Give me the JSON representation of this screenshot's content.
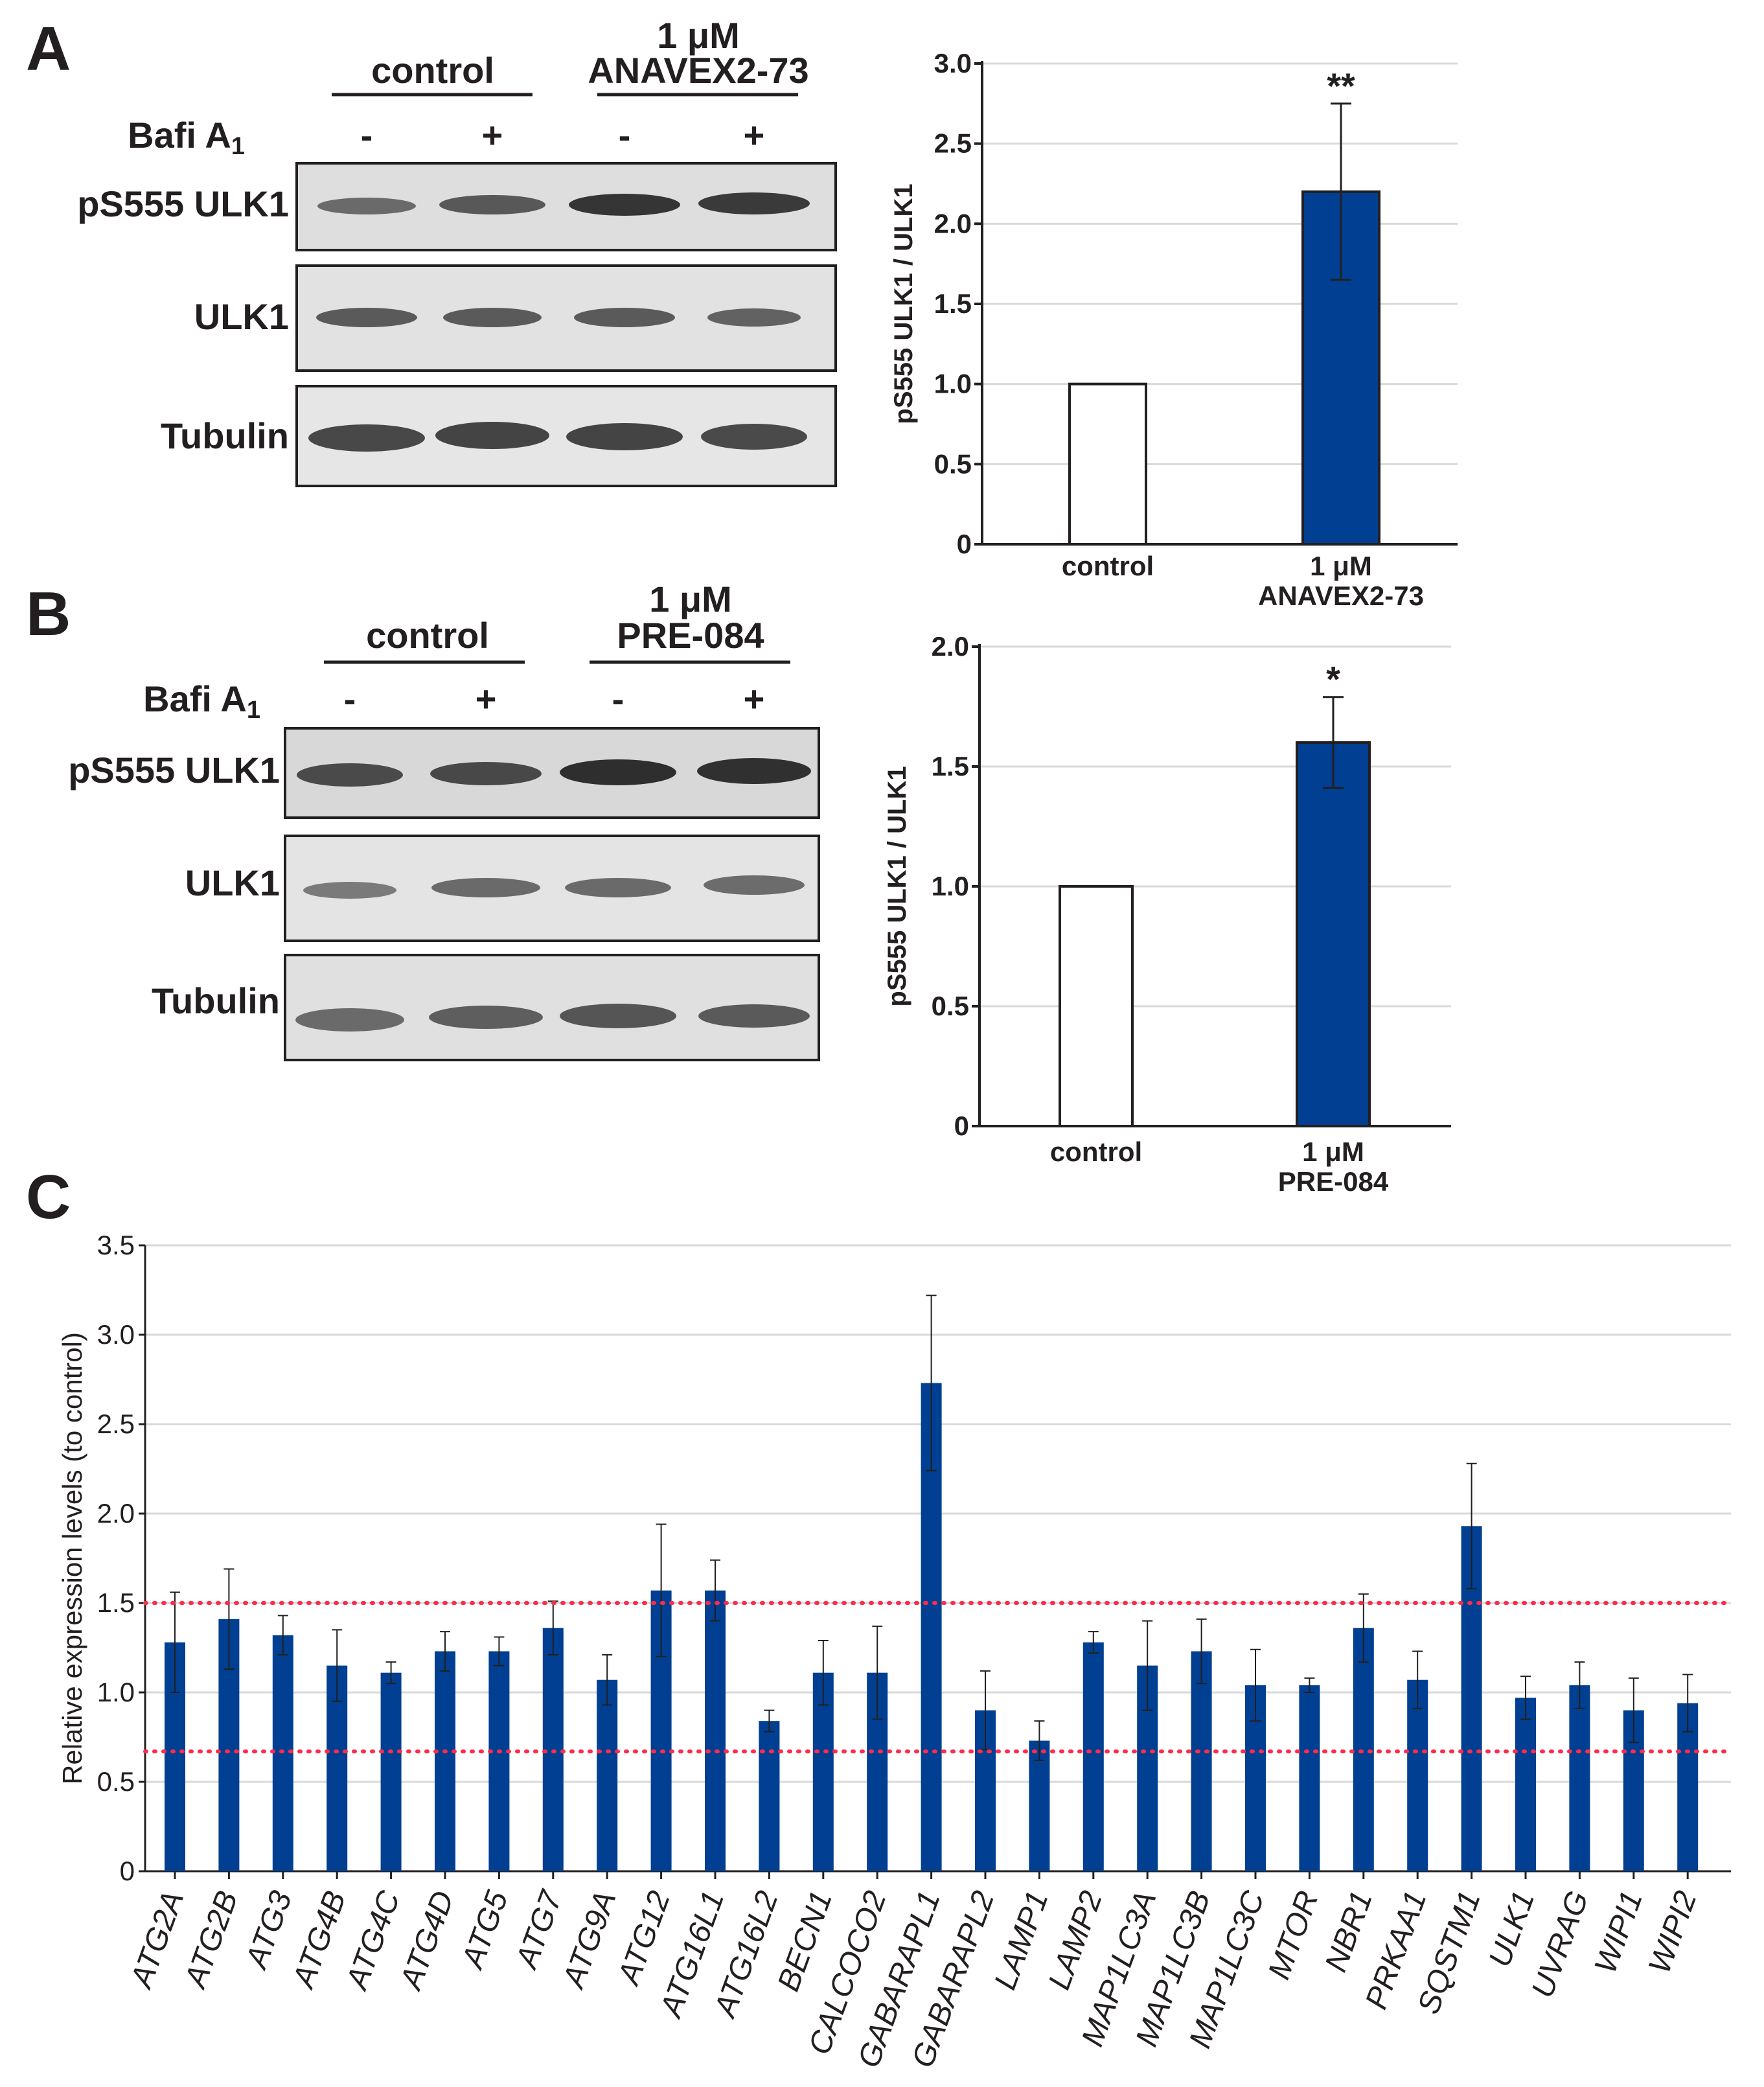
{
  "panels": {
    "a": "A",
    "b": "B",
    "c": "C"
  },
  "blot_a": {
    "group1": "control",
    "group2_line1": "1 μM",
    "group2_line2": "ANAVEX2-73",
    "treatment_label": "Bafi A",
    "treatment_sub": "1",
    "signs": [
      "-",
      "+",
      "-",
      "+"
    ],
    "rows": [
      "pS555 ULK1",
      "ULK1",
      "Tubulin"
    ]
  },
  "blot_b": {
    "group1": "control",
    "group2_line1": "1 μM",
    "group2_line2": "PRE-084",
    "treatment_label": "Bafi A",
    "treatment_sub": "1",
    "signs": [
      "-",
      "+",
      "-",
      "+"
    ],
    "rows": [
      "pS555 ULK1",
      "ULK1",
      "Tubulin"
    ]
  },
  "colors": {
    "bar_fill": "#003f91",
    "threshold_line": "#ff2b4a",
    "grid": "#d9d9d9",
    "blot_bg": "#dcdcdc",
    "band": "#3c3c3c"
  },
  "chart_data": [
    {
      "id": "A",
      "type": "bar",
      "categories": [
        "control",
        "1 μM ANAVEX2-73"
      ],
      "category_lines": [
        [
          "control"
        ],
        [
          "1 μM",
          "ANAVEX2-73"
        ]
      ],
      "values": [
        1.0,
        2.2
      ],
      "errors": [
        0,
        0.55
      ],
      "significance": [
        "",
        "**"
      ],
      "ylabel": "pS555 ULK1 / ULK1",
      "ylim": [
        0,
        3.0
      ],
      "yticks": [
        0,
        0.5,
        1.0,
        1.5,
        2.0,
        2.5,
        3.0
      ],
      "ytick_labels": [
        "0",
        "0.5",
        "1.0",
        "1.5",
        "2.0",
        "2.5",
        "3.0"
      ],
      "grid": true
    },
    {
      "id": "B",
      "type": "bar",
      "categories": [
        "control",
        "1 μM PRE-084"
      ],
      "category_lines": [
        [
          "control"
        ],
        [
          "1 μM",
          "PRE-084"
        ]
      ],
      "values": [
        1.0,
        1.6
      ],
      "errors": [
        0,
        0.19
      ],
      "significance": [
        "",
        "*"
      ],
      "ylabel": "pS555 ULK1 / ULK1",
      "ylim": [
        0,
        2.0
      ],
      "yticks": [
        0,
        0.5,
        1.0,
        1.5,
        2.0
      ],
      "ytick_labels": [
        "0",
        "0.5",
        "1.0",
        "1.5",
        "2.0"
      ],
      "grid": true
    },
    {
      "id": "C",
      "type": "bar",
      "categories": [
        "ATG2A",
        "ATG2B",
        "ATG3",
        "ATG4B",
        "ATG4C",
        "ATG4D",
        "ATG5",
        "ATG7",
        "ATG9A",
        "ATG12",
        "ATG16L1",
        "ATG16L2",
        "BECN1",
        "CALCOCO2",
        "GABARAPL1",
        "GABARAPL2",
        "LAMP1",
        "LAMP2",
        "MAP1LC3A",
        "MAP1LC3B",
        "MAP1LC3C",
        "MTOR",
        "NBR1",
        "PRKAA1",
        "SQSTM1",
        "ULK1",
        "UVRAG",
        "WIPI1",
        "WIPI2"
      ],
      "values": [
        1.28,
        1.41,
        1.32,
        1.15,
        1.11,
        1.23,
        1.23,
        1.36,
        1.07,
        1.57,
        1.57,
        0.84,
        1.11,
        1.11,
        2.73,
        0.9,
        0.73,
        1.28,
        1.15,
        1.23,
        1.04,
        1.04,
        1.36,
        1.07,
        1.93,
        0.97,
        1.04,
        0.9,
        0.94
      ],
      "errors": [
        0.28,
        0.28,
        0.11,
        0.2,
        0.06,
        0.11,
        0.08,
        0.15,
        0.14,
        0.37,
        0.17,
        0.06,
        0.18,
        0.26,
        0.49,
        0.22,
        0.11,
        0.06,
        0.25,
        0.18,
        0.2,
        0.04,
        0.19,
        0.16,
        0.35,
        0.12,
        0.13,
        0.18,
        0.16
      ],
      "ylabel": "Relative expression levels (to control)",
      "ylim": [
        0,
        3.5
      ],
      "yticks": [
        0,
        0.5,
        1.0,
        1.5,
        2.0,
        2.5,
        3.0,
        3.5
      ],
      "ytick_labels": [
        "0",
        "0.5",
        "1.0",
        "1.5",
        "2.0",
        "2.5",
        "3.0",
        "3.5"
      ],
      "thresholds": [
        1.5,
        0.67
      ],
      "grid": true
    }
  ]
}
